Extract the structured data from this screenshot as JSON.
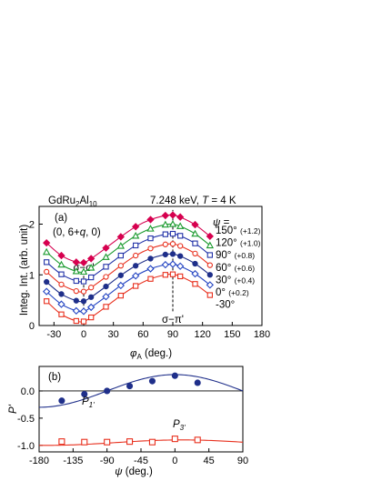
{
  "chart_data": [
    {
      "type": "line",
      "panel_label": "(a)",
      "header_left": "GdRu2Al10",
      "header_right": "7.248 keV, T = 4 K",
      "reflection": "(0, 6+q, 0)",
      "ylabel": "Integ. Int. (arb. unit)",
      "xlabel": "φA (deg.)",
      "xlim": [
        -45,
        180
      ],
      "ylim": [
        0,
        2.35
      ],
      "xticks": [
        -30,
        0,
        30,
        60,
        90,
        120,
        150,
        180
      ],
      "yticks": [
        0,
        1,
        2
      ],
      "annotations": {
        "sigma_sigma": "σ−σ'",
        "sigma_pi": "σ−π'",
        "sigma_sigma_x": 0,
        "sigma_pi_x": 90
      },
      "legend_title": "ψ =",
      "x": [
        -37.5,
        -22.5,
        -7.5,
        0,
        7.5,
        22.5,
        37.5,
        52.5,
        67.5,
        82.5,
        90,
        97.5,
        112.5,
        127.5
      ],
      "series": [
        {
          "name": "150°",
          "offset_label": "(+1.2)",
          "color": "#d6004f",
          "marker": "diamond",
          "filled": true,
          "values": [
            1.63,
            1.38,
            1.25,
            1.24,
            1.32,
            1.53,
            1.75,
            1.95,
            2.09,
            2.17,
            2.18,
            2.14,
            1.99,
            1.76
          ]
        },
        {
          "name": "120°",
          "offset_label": "(+1.0)",
          "color": "#1a9a2e",
          "marker": "triangle",
          "filled": false,
          "values": [
            1.45,
            1.2,
            1.07,
            1.06,
            1.14,
            1.35,
            1.57,
            1.77,
            1.91,
            1.99,
            2.0,
            1.96,
            1.81,
            1.58
          ]
        },
        {
          "name": "90°",
          "offset_label": "(+0.8)",
          "color": "#2333a8",
          "marker": "square",
          "filled": false,
          "values": [
            1.25,
            1.01,
            0.88,
            0.87,
            0.95,
            1.16,
            1.38,
            1.58,
            1.72,
            1.8,
            1.81,
            1.77,
            1.62,
            1.39
          ]
        },
        {
          "name": "60°",
          "offset_label": "(+0.6)",
          "color": "#e8301e",
          "marker": "circle",
          "filled": false,
          "values": [
            1.06,
            0.81,
            0.68,
            0.67,
            0.75,
            0.96,
            1.18,
            1.38,
            1.52,
            1.6,
            1.61,
            1.57,
            1.42,
            1.19
          ]
        },
        {
          "name": "30°",
          "offset_label": "(+0.4)",
          "color": "#1f2f8a",
          "marker": "circle",
          "filled": true,
          "values": [
            0.86,
            0.62,
            0.49,
            0.48,
            0.56,
            0.77,
            0.99,
            1.18,
            1.32,
            1.4,
            1.41,
            1.37,
            1.22,
            1.0
          ]
        },
        {
          "name": "0°",
          "offset_label": "(+0.2)",
          "color": "#2344c2",
          "marker": "diamond",
          "filled": false,
          "values": [
            0.67,
            0.42,
            0.29,
            0.28,
            0.36,
            0.57,
            0.79,
            0.98,
            1.12,
            1.2,
            1.21,
            1.17,
            1.02,
            0.8
          ]
        },
        {
          "name": "-30°",
          "offset_label": "",
          "color": "#e8301e",
          "marker": "square",
          "filled": false,
          "values": [
            0.48,
            0.22,
            0.09,
            0.08,
            0.16,
            0.37,
            0.59,
            0.78,
            0.92,
            1.0,
            1.01,
            0.97,
            0.82,
            0.6
          ]
        }
      ]
    },
    {
      "type": "scatter",
      "panel_label": "(b)",
      "ylabel": "P'",
      "xlabel": "ψ (deg.)",
      "xlim": [
        -180,
        90
      ],
      "ylim": [
        -1.12,
        0.45
      ],
      "xticks": [
        -180,
        -135,
        -90,
        -45,
        0,
        45,
        90
      ],
      "yticks": [
        -1.0,
        -0.5,
        0.0
      ],
      "series": [
        {
          "name": "P1'",
          "color": "#1f2f8a",
          "marker": "circle",
          "filled": true,
          "x": [
            -150,
            -120,
            -90,
            -60,
            -30,
            0,
            30
          ],
          "values": [
            -0.18,
            -0.06,
            0.0,
            0.09,
            0.18,
            0.28,
            0.15
          ],
          "fit": {
            "amplitude": 0.3,
            "peak_at": 0,
            "period": 360,
            "baseline": 0.0
          }
        },
        {
          "name": "P3'",
          "color": "#e8301e",
          "marker": "square",
          "filled": false,
          "x": [
            -150,
            -120,
            -90,
            -60,
            -30,
            0,
            30
          ],
          "values": [
            -0.93,
            -0.94,
            -0.94,
            -0.93,
            -0.94,
            -0.88,
            -0.9
          ],
          "fit": {
            "amplitude": 0.05,
            "peak_at": 10,
            "period": 360,
            "baseline": -0.95
          }
        }
      ]
    }
  ]
}
